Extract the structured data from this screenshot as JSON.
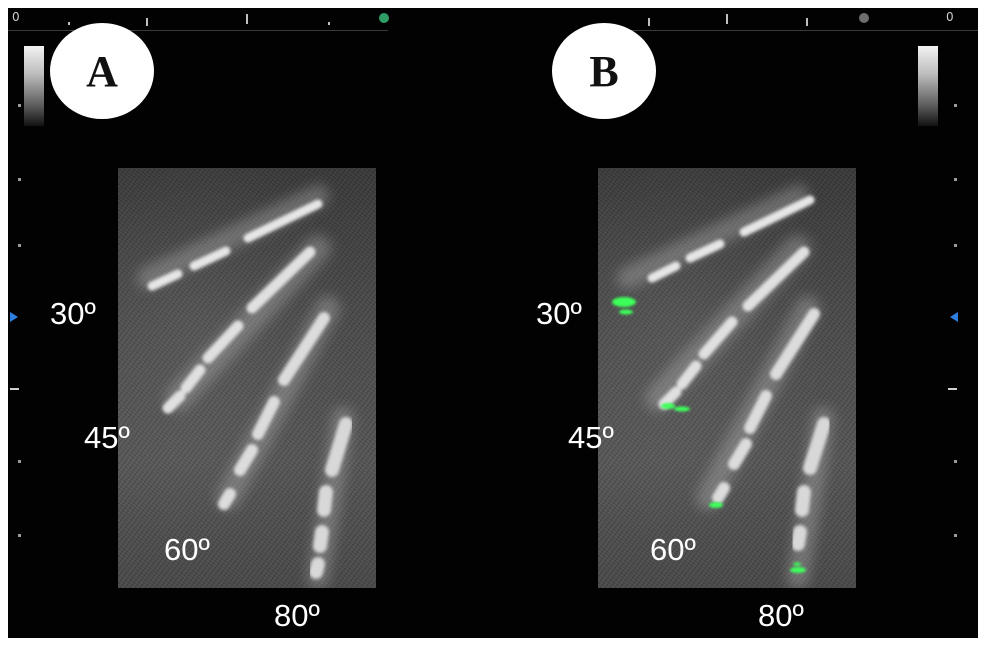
{
  "panels": [
    {
      "label": "A",
      "angles": [
        "30º",
        "45º",
        "60º",
        "80º"
      ],
      "scale_zero": "0"
    },
    {
      "label": "B",
      "angles": [
        "30º",
        "45º",
        "60º",
        "80º"
      ],
      "scale_zero": "0"
    }
  ],
  "colors": {
    "background": "#020202",
    "highlight": "#3cff5a",
    "marker_left": "#2e9e66",
    "marker_right": "#6e6e6e",
    "depth_marker": "#2f7fe0"
  },
  "icons": {
    "depth_marker": "blue-triangle-icon",
    "focus_marker": "dot-icon"
  }
}
